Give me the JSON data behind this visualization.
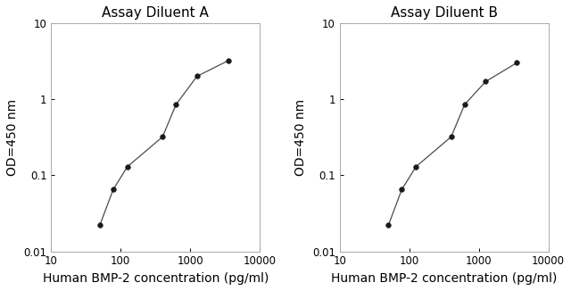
{
  "panel_A": {
    "title": "Assay Diluent A",
    "x": [
      50,
      78,
      125,
      400,
      625,
      1250,
      3500
    ],
    "y": [
      0.022,
      0.065,
      0.13,
      0.32,
      0.85,
      2.0,
      3.2
    ]
  },
  "panel_B": {
    "title": "Assay Diluent B",
    "x": [
      50,
      78,
      125,
      400,
      625,
      1250,
      3500
    ],
    "y": [
      0.022,
      0.065,
      0.13,
      0.32,
      0.85,
      1.7,
      3.0
    ]
  },
  "xlabel": "Human BMP-2 concentration (pg/ml)",
  "ylabel": "OD=450 nm",
  "xlim": [
    10,
    10000
  ],
  "ylim": [
    0.01,
    10
  ],
  "xticks": [
    10,
    100,
    1000,
    10000
  ],
  "xtick_labels": [
    "10",
    "100",
    "1000",
    "10000"
  ],
  "yticks": [
    0.01,
    0.1,
    1,
    10
  ],
  "ytick_labels": [
    "0.01",
    "0.1",
    "1",
    "10"
  ],
  "line_color": "#4a4a4a",
  "marker_color": "#1a1a1a",
  "bg_color": "#ffffff",
  "spine_color": "#aaaaaa",
  "title_fontsize": 11,
  "label_fontsize": 10,
  "tick_fontsize": 8.5
}
